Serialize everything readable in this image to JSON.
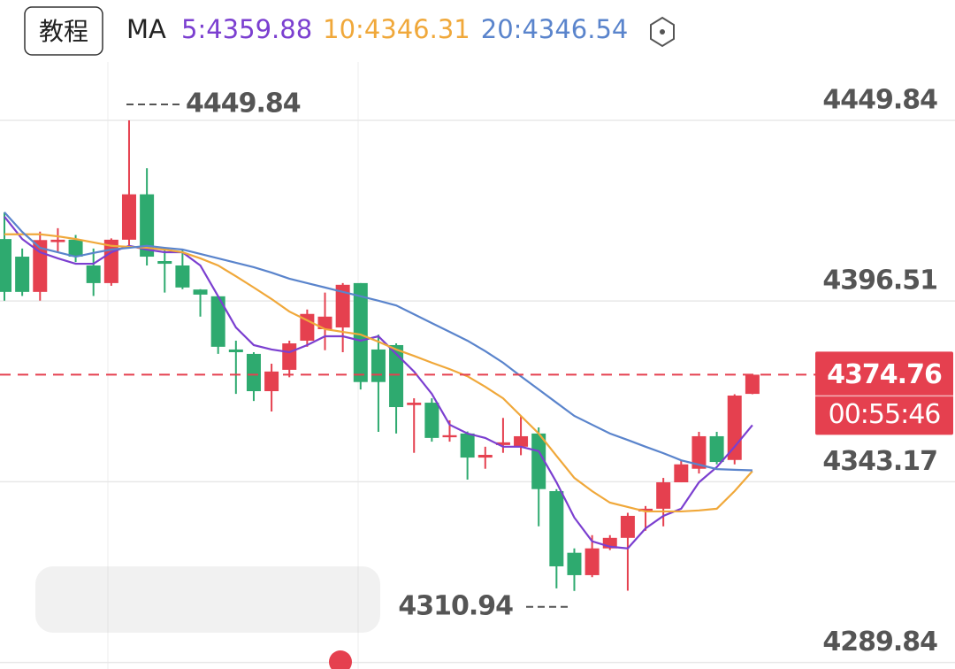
{
  "header": {
    "button": "教程",
    "ma_label": "MA"
  },
  "chart_data": {
    "type": "candlestick",
    "open": [
      4414.8,
      4409.6,
      4399.2,
      4413.9,
      4414.6,
      4407,
      4401.8,
      4414.6,
      4428,
      4408.3,
      4407,
      4399.9,
      4397.9,
      4382.2,
      4380.9,
      4369.9,
      4376.2,
      4384.8,
      4388.2,
      4388.7,
      4401.8,
      4382.2,
      4383.5,
      4365.8,
      4366.5,
      4356.3,
      4357.4,
      4350.3,
      4354,
      4353.5,
      4357.4,
      4340.4,
      4322.2,
      4315.6,
      4323.5,
      4326.6,
      4334.4,
      4335.2,
      4343,
      4347,
      4356.6,
      4349.6,
      4369.1
    ],
    "high": [
      4422.7,
      4412,
      4417,
      4418,
      4416,
      4412,
      4415,
      4449.84,
      4435.7,
      4412,
      4411.7,
      4400,
      4398,
      4384.8,
      4381.4,
      4378,
      4384.8,
      4394,
      4399,
      4401.8,
      4401.8,
      4386.6,
      4384,
      4367.8,
      4367.8,
      4361.3,
      4358,
      4353.5,
      4362,
      4362.6,
      4359.2,
      4341,
      4323.5,
      4327.4,
      4327.4,
      4334,
      4336,
      4344.3,
      4349.6,
      4357.9,
      4357.9,
      4369,
      4374.76
    ],
    "low": [
      4396.6,
      4398,
      4396.6,
      4411,
      4408,
      4398,
      4401,
      4412,
      4407,
      4399,
      4400,
      4391.9,
      4380.9,
      4369.1,
      4367,
      4363.9,
      4374,
      4383,
      4382,
      4381.4,
      4370.4,
      4357.9,
      4357.4,
      4351.7,
      4355,
      4355,
      4343.8,
      4347,
      4351.7,
      4351,
      4330,
      4311.7,
      4310.94,
      4315,
      4323,
      4311,
      4328.7,
      4330,
      4343,
      4345.6,
      4348.3,
      4348.3,
      4369
    ],
    "close": [
      4399.2,
      4399.2,
      4414.5,
      4414.6,
      4409.6,
      4401.8,
      4414.6,
      4428,
      4409.6,
      4407.5,
      4400.5,
      4398.4,
      4383,
      4381.4,
      4369.9,
      4375.7,
      4384,
      4392.7,
      4391.9,
      4401.3,
      4372.6,
      4372.6,
      4365.2,
      4366.5,
      4356.1,
      4356.9,
      4350.3,
      4351.1,
      4354.8,
      4356.6,
      4341,
      4318.2,
      4315.6,
      4323.5,
      4326.6,
      4333.1,
      4335.2,
      4343,
      4348.3,
      4356.6,
      4349,
      4368.6,
      4374.76
    ],
    "up_color": "#e5404f",
    "down_color": "#2eaa6f",
    "series": [
      {
        "name": "5:4359.88",
        "color": "#7b3fd0",
        "values": [
          4421.4,
          4414.8,
          4410.9,
          4409.1,
          4407.5,
          4407.5,
          4410.9,
          4412.8,
          4411.7,
          4410.9,
          4410.9,
          4407,
          4397.9,
          4388.7,
          4383.5,
          4382.2,
          4381.4,
          4383.5,
          4386.1,
          4386.1,
          4384.8,
          4386.1,
          4380.9,
          4375.7,
          4369.1,
          4360,
          4357.4,
          4356.1,
          4353.5,
          4353.5,
          4352.2,
          4343,
          4332.6,
          4325.6,
          4324,
          4323.5,
          4329.4,
          4333.1,
          4335.2,
          4343,
          4347.5,
          4353.5,
          4359.88
        ]
      },
      {
        "name": "10:4346.31",
        "color": "#f0a83a",
        "values": [
          4416.2,
          4416.2,
          4416.2,
          4415.6,
          4414.8,
          4413.8,
          4412.8,
          4412.5,
          4412.2,
          4411.7,
          4410.9,
          4409.1,
          4407,
          4403.8,
          4400.5,
          4397.1,
          4393.4,
          4390.8,
          4388.2,
          4387.4,
          4386.6,
          4384.5,
          4382.2,
          4380.3,
          4378.3,
          4376.4,
          4374.3,
          4371.2,
          4367.8,
          4362.6,
          4357.4,
          4350.8,
          4344.3,
          4340.4,
          4337,
          4335.7,
          4334.4,
          4334.4,
          4334.4,
          4334.7,
          4335.2,
          4340.4,
          4346.31
        ]
      },
      {
        "name": "20:4346.54",
        "color": "#5a84cc",
        "values": [
          4422.7,
          4416.9,
          4412.2,
          4410.9,
          4409.6,
          4410.7,
          4411.7,
          4412.2,
          4412.8,
          4412.2,
          4411.7,
          4410.4,
          4409.1,
          4407.8,
          4406.5,
          4404.9,
          4403.1,
          4401.8,
          4400.5,
          4399.2,
          4397.9,
          4396.6,
          4395.2,
          4392.6,
          4390,
          4387.4,
          4384.8,
          4381.7,
          4378.3,
          4374.3,
          4370.4,
          4366.5,
          4362.6,
          4360,
          4357.4,
          4355.5,
          4353.5,
          4351.6,
          4349.5,
          4348.2,
          4346.9,
          4346.7,
          4346.54
        ]
      }
    ],
    "ylim": [
      4287.9,
      4485.35
    ],
    "yticks": [
      4449.84,
      4396.51,
      4343.17,
      4289.84
    ],
    "grid": true,
    "high_marker": 4449.84,
    "low_marker": 4310.94,
    "last_price": 4374.76,
    "countdown": "00:55:46"
  }
}
